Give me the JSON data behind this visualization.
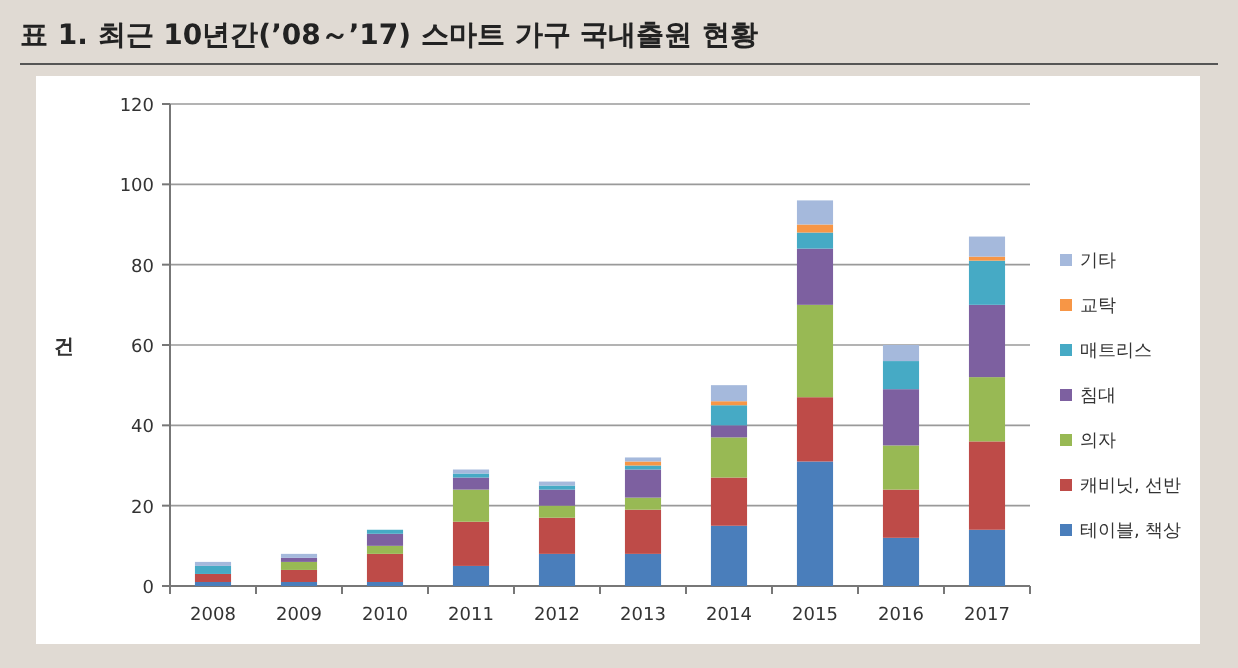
{
  "chart_data": {
    "type": "bar",
    "stacked": true,
    "title": "표 1. 최근 10년간(’08～’17) 스마트 가구 국내출원 현황",
    "ylabel": "건",
    "categories": [
      "2008",
      "2009",
      "2010",
      "2011",
      "2012",
      "2013",
      "2014",
      "2015",
      "2016",
      "2017"
    ],
    "series": [
      {
        "name": "테이블, 책상",
        "color": "#4a7ebb",
        "values": [
          1,
          1,
          1,
          5,
          8,
          8,
          15,
          31,
          12,
          14
        ]
      },
      {
        "name": "캐비닛, 선반",
        "color": "#be4b48",
        "values": [
          2,
          3,
          7,
          11,
          9,
          11,
          12,
          16,
          12,
          22
        ]
      },
      {
        "name": "의자",
        "color": "#98b954",
        "values": [
          0,
          2,
          2,
          8,
          3,
          3,
          10,
          23,
          11,
          16
        ]
      },
      {
        "name": "침대",
        "color": "#7d60a0",
        "values": [
          0,
          1,
          3,
          3,
          4,
          7,
          3,
          14,
          14,
          18
        ]
      },
      {
        "name": "매트리스",
        "color": "#46aac5",
        "values": [
          2,
          0,
          1,
          1,
          1,
          1,
          5,
          4,
          7,
          11
        ]
      },
      {
        "name": "교탁",
        "color": "#f79646",
        "values": [
          0,
          0,
          0,
          0,
          0,
          1,
          1,
          2,
          0,
          1
        ]
      },
      {
        "name": "기타",
        "color": "#a5b9dc",
        "values": [
          1,
          1,
          0,
          1,
          1,
          1,
          4,
          6,
          4,
          5
        ]
      }
    ],
    "ylim": [
      0,
      120
    ],
    "yticks": [
      0,
      20,
      40,
      60,
      80,
      100,
      120
    ],
    "grid": "y",
    "legend": "right"
  }
}
